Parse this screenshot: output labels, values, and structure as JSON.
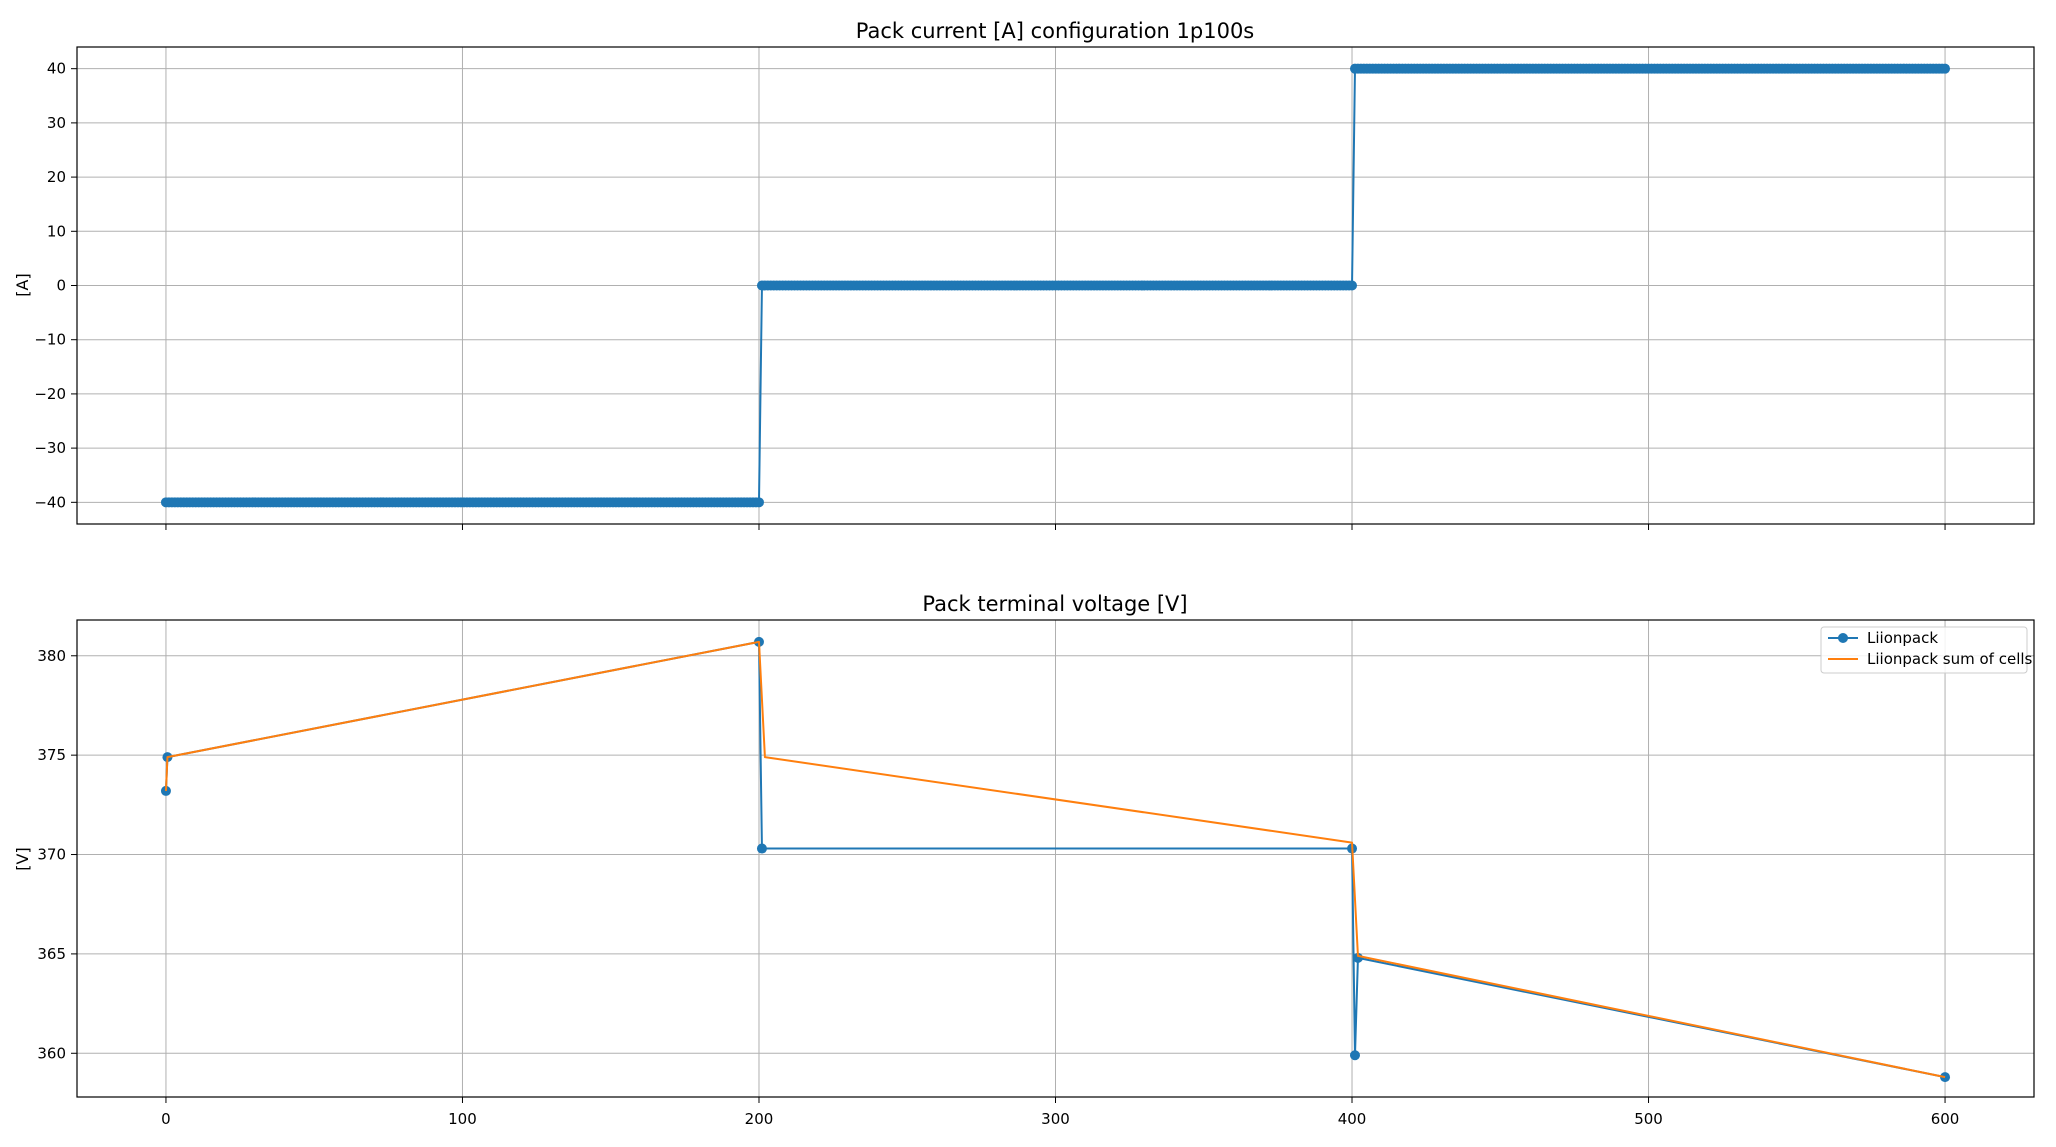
{
  "colors": {
    "series1": "#1f77b4",
    "series2": "#ff7f0e",
    "grid": "#b0b0b0"
  },
  "chart_data": [
    {
      "type": "line",
      "title": "Pack current [A] configuration 1p100s",
      "xlabel": "",
      "ylabel": "[A]",
      "xlim": [
        -30,
        630
      ],
      "ylim": [
        -44,
        44
      ],
      "xticks": [
        0,
        100,
        200,
        300,
        400,
        500,
        600
      ],
      "xtick_labels": [],
      "yticks": [
        -40,
        -30,
        -20,
        -10,
        0,
        10,
        20,
        30,
        40
      ],
      "ytick_labels": [
        "−40",
        "−30",
        "−20",
        "−10",
        "0",
        "10",
        "20",
        "30",
        "40"
      ],
      "grid": true,
      "series": [
        {
          "markers": true,
          "segments": [
            {
              "x0": 0,
              "x1": 200,
              "y0": -40,
              "y1": -40,
              "n": 200
            },
            {
              "x0": 201,
              "x1": 400,
              "y0": 0,
              "y1": 0,
              "n": 200
            },
            {
              "x0": 401,
              "x1": 600,
              "y0": 40,
              "y1": 40,
              "n": 200
            }
          ]
        }
      ]
    },
    {
      "type": "line",
      "title": "Pack terminal voltage [V]",
      "xlabel": "",
      "ylabel": "[V]",
      "xlim": [
        -30,
        630
      ],
      "ylim": [
        357.8,
        381.8
      ],
      "xticks": [
        0,
        100,
        200,
        300,
        400,
        500,
        600
      ],
      "xtick_labels": [
        "0",
        "100",
        "200",
        "300",
        "400",
        "500",
        "600"
      ],
      "yticks": [
        360,
        365,
        370,
        375,
        380
      ],
      "ytick_labels": [
        "360",
        "365",
        "370",
        "375",
        "380"
      ],
      "grid": true,
      "legend_position": "top-right",
      "series": [
        {
          "name": "Liionpack",
          "markers": true,
          "points": [
            [
              0,
              373.2
            ],
            [
              0.5,
              374.9
            ],
            [
              200,
              380.7
            ],
            [
              201,
              370.3
            ],
            [
              400,
              370.3
            ],
            [
              401,
              359.9
            ],
            [
              402,
              364.8
            ],
            [
              600,
              358.8
            ]
          ]
        },
        {
          "name": "Liionpack sum of cells",
          "markers": false,
          "points": [
            [
              0,
              373.2
            ],
            [
              0.5,
              374.9
            ],
            [
              200,
              380.7
            ],
            [
              202,
              374.9
            ],
            [
              400,
              370.6
            ],
            [
              402,
              364.9
            ],
            [
              600,
              358.8
            ]
          ]
        }
      ]
    }
  ]
}
